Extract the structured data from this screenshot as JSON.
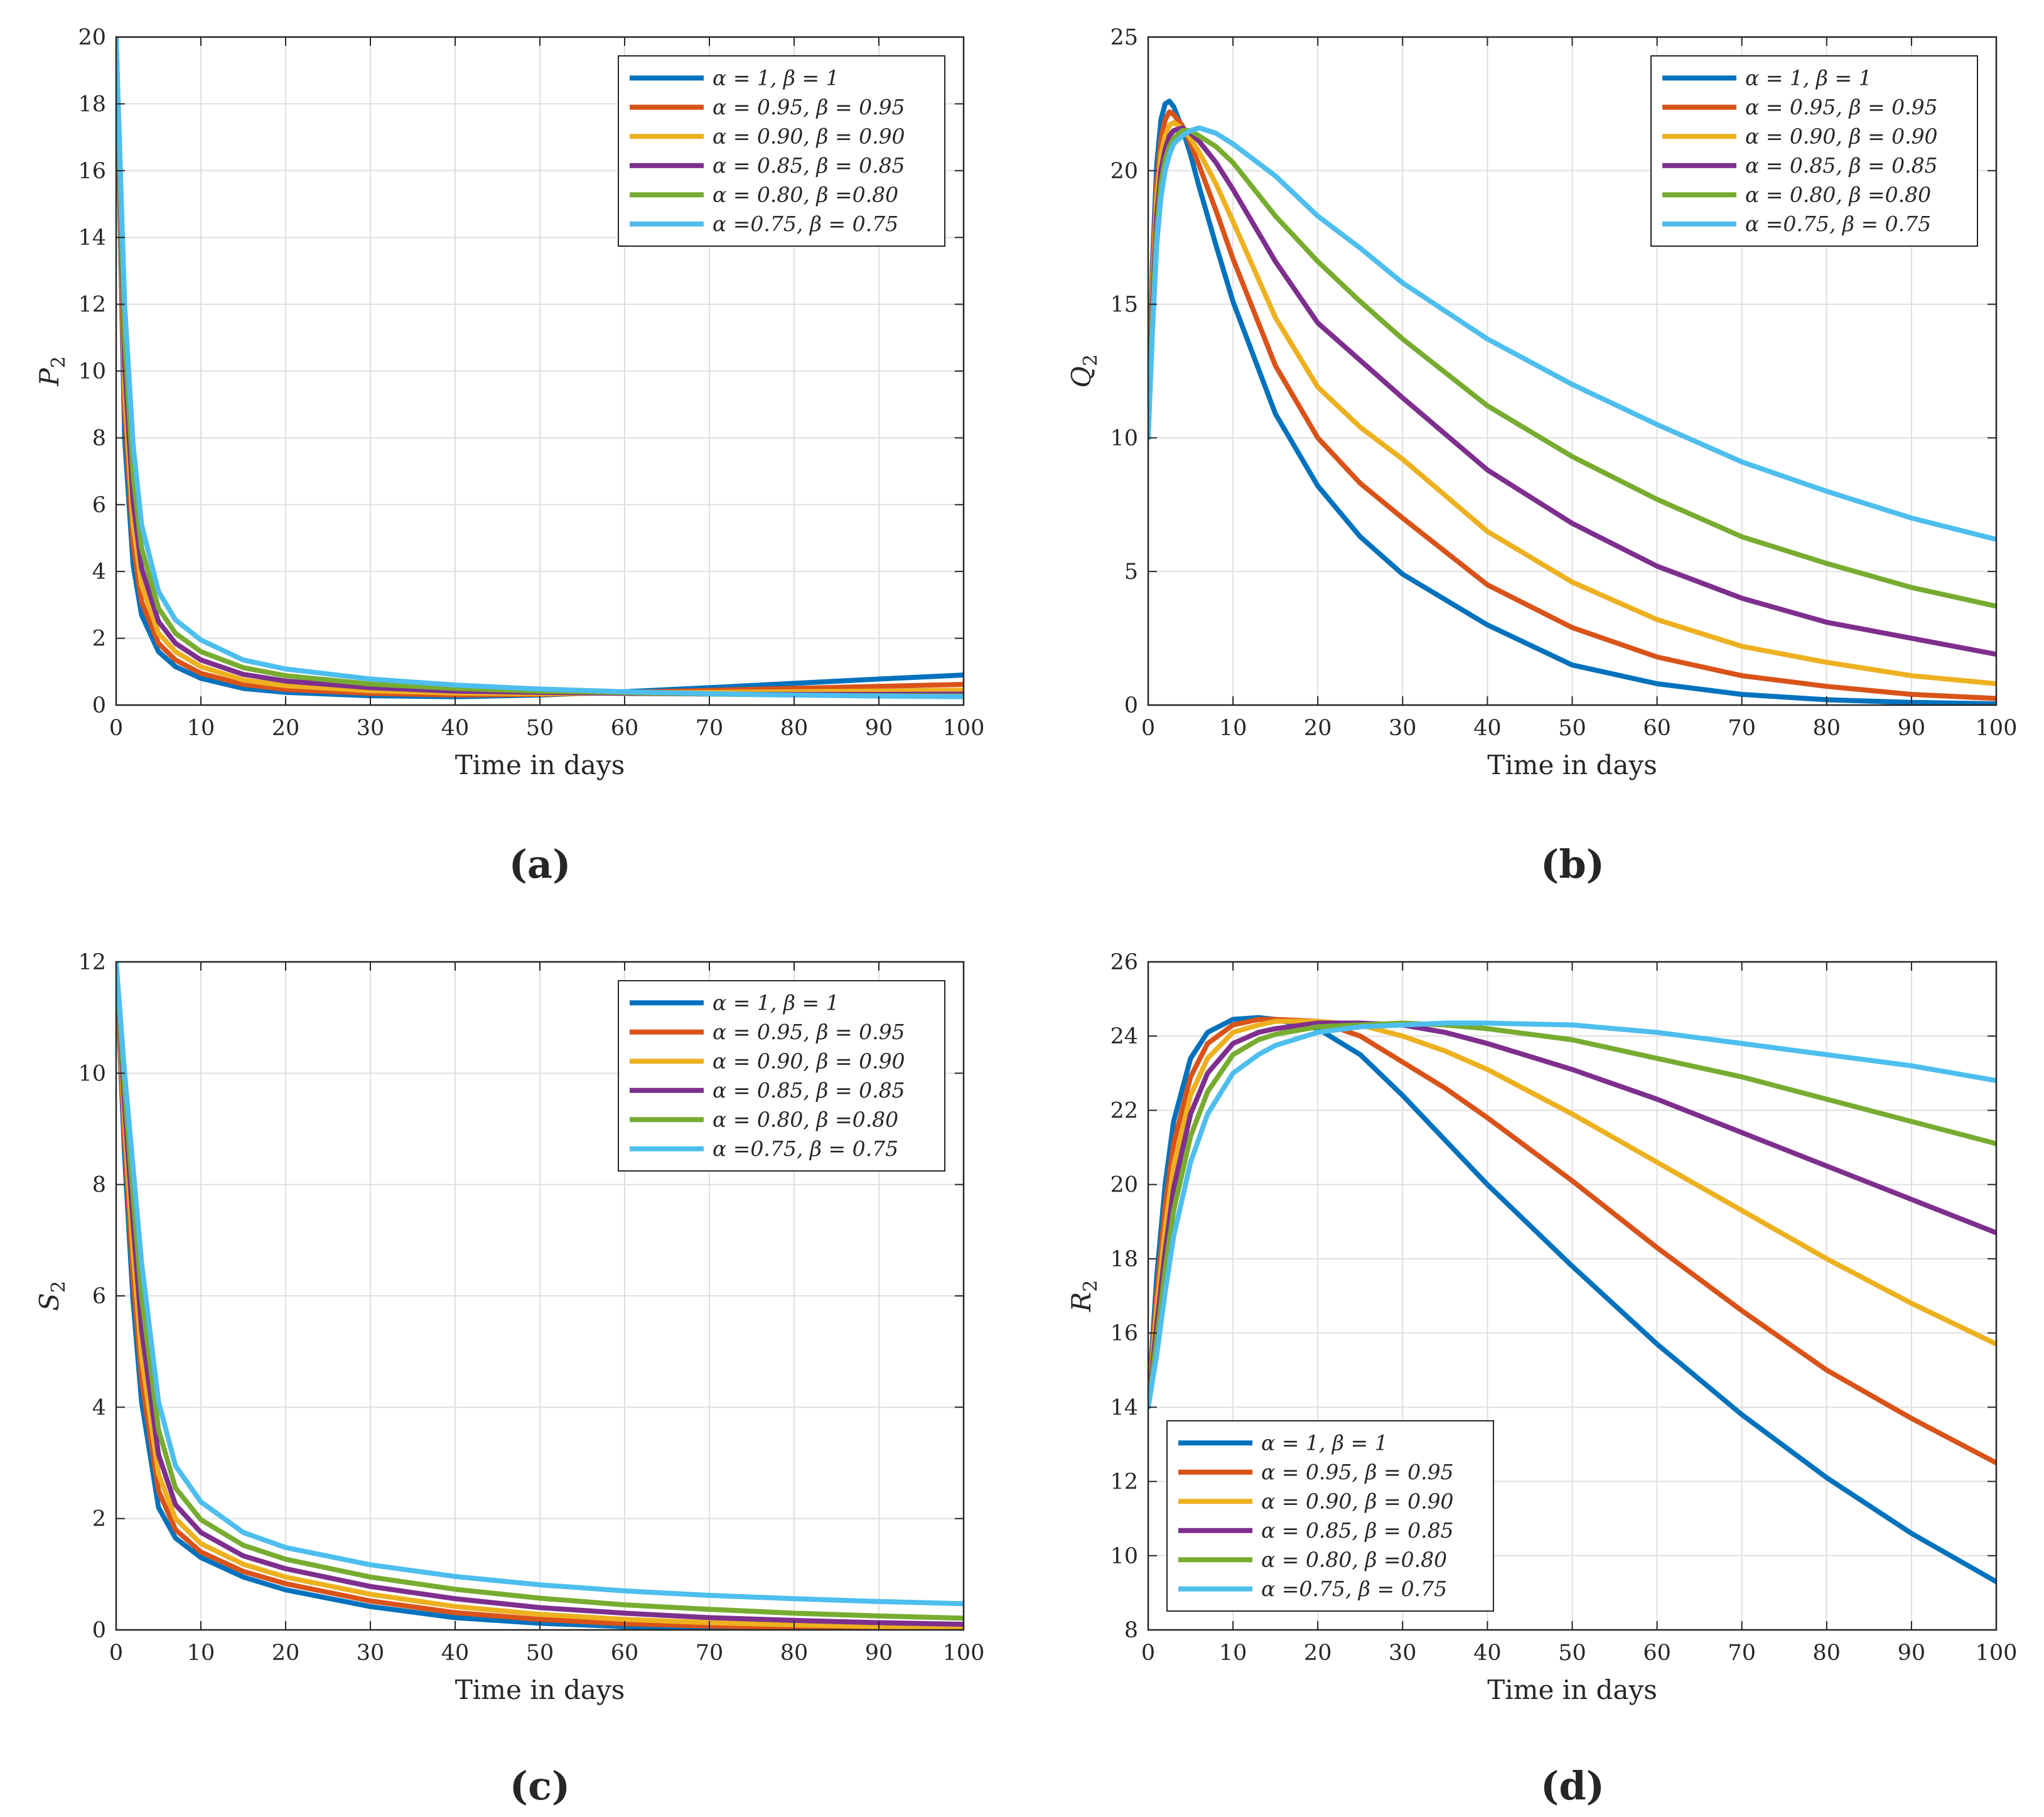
{
  "figure": {
    "legend_labels": [
      "α = 1, β = 1",
      "α = 0.95, β = 0.95",
      "α = 0.90, β = 0.90",
      "α = 0.85, β = 0.85",
      "α = 0.80, β =0.80",
      "α =0.75, β = 0.75"
    ],
    "series_colors": [
      "#0072BD",
      "#D95319",
      "#EDB120",
      "#7E2F8E",
      "#77AC30",
      "#4DBEEE"
    ]
  },
  "chart_data": [
    {
      "id": "a",
      "type": "line",
      "caption": "(a)",
      "xlabel": "Time in days",
      "ylabel_main": "P",
      "ylabel_sub": "2",
      "xlim": [
        0,
        100
      ],
      "ylim": [
        0,
        20
      ],
      "xticks": [
        0,
        10,
        20,
        30,
        40,
        50,
        60,
        70,
        80,
        90,
        100
      ],
      "yticks": [
        0,
        2,
        4,
        6,
        8,
        10,
        12,
        14,
        16,
        18,
        20
      ],
      "grid": true,
      "legend_position": "top-right",
      "x": [
        0,
        1,
        2,
        3,
        5,
        7,
        10,
        15,
        20,
        30,
        40,
        50,
        60,
        70,
        80,
        90,
        100
      ],
      "series": [
        {
          "name": "α = 1, β = 1",
          "values": [
            20,
            8.0,
            4.2,
            2.7,
            1.6,
            1.15,
            0.8,
            0.5,
            0.38,
            0.28,
            0.25,
            0.3,
            0.4,
            0.52,
            0.65,
            0.78,
            0.9
          ]
        },
        {
          "name": "α = 0.95, β = 0.95",
          "values": [
            20,
            8.8,
            4.8,
            3.1,
            1.85,
            1.35,
            0.95,
            0.62,
            0.47,
            0.35,
            0.3,
            0.32,
            0.38,
            0.44,
            0.5,
            0.56,
            0.62
          ]
        },
        {
          "name": "α = 0.90, β = 0.90",
          "values": [
            20,
            9.5,
            5.4,
            3.6,
            2.15,
            1.6,
            1.15,
            0.75,
            0.58,
            0.43,
            0.36,
            0.34,
            0.36,
            0.38,
            0.4,
            0.42,
            0.45
          ]
        },
        {
          "name": "α = 0.85, β = 0.85",
          "values": [
            20,
            10.2,
            6.1,
            4.1,
            2.5,
            1.85,
            1.35,
            0.92,
            0.72,
            0.52,
            0.42,
            0.38,
            0.35,
            0.33,
            0.32,
            0.32,
            0.33
          ]
        },
        {
          "name": "α = 0.80, β =0.80",
          "values": [
            20,
            11.0,
            6.9,
            4.7,
            2.9,
            2.15,
            1.6,
            1.12,
            0.88,
            0.63,
            0.5,
            0.42,
            0.37,
            0.33,
            0.3,
            0.28,
            0.27
          ]
        },
        {
          "name": "α =0.75, β = 0.75",
          "values": [
            20,
            12.0,
            7.8,
            5.4,
            3.4,
            2.55,
            1.95,
            1.35,
            1.08,
            0.78,
            0.6,
            0.48,
            0.4,
            0.34,
            0.3,
            0.27,
            0.25
          ]
        }
      ]
    },
    {
      "id": "b",
      "type": "line",
      "caption": "(b)",
      "xlabel": "Time in days",
      "ylabel_main": "Q",
      "ylabel_sub": "2",
      "xlim": [
        0,
        100
      ],
      "ylim": [
        0,
        25
      ],
      "xticks": [
        0,
        10,
        20,
        30,
        40,
        50,
        60,
        70,
        80,
        90,
        100
      ],
      "yticks": [
        0,
        5,
        10,
        15,
        20,
        25
      ],
      "grid": true,
      "legend_position": "top-right",
      "x": [
        0,
        0.5,
        1,
        1.5,
        2,
        2.5,
        3,
        4,
        5,
        6,
        8,
        10,
        15,
        20,
        25,
        30,
        40,
        50,
        60,
        70,
        80,
        90,
        100
      ],
      "series": [
        {
          "name": "α = 1, β = 1",
          "values": [
            10,
            16.5,
            20.2,
            21.9,
            22.5,
            22.6,
            22.4,
            21.6,
            20.6,
            19.4,
            17.2,
            15.1,
            10.9,
            8.2,
            6.3,
            4.9,
            3.0,
            1.5,
            0.8,
            0.4,
            0.2,
            0.1,
            0.05
          ]
        },
        {
          "name": "α = 0.95, β = 0.95",
          "values": [
            10,
            16.0,
            19.5,
            21.2,
            21.9,
            22.2,
            22.1,
            21.7,
            21.0,
            20.2,
            18.5,
            16.7,
            12.7,
            10.0,
            8.3,
            7.0,
            4.5,
            2.9,
            1.8,
            1.1,
            0.7,
            0.4,
            0.25
          ]
        },
        {
          "name": "α = 0.90, β = 0.90",
          "values": [
            10,
            15.5,
            18.9,
            20.6,
            21.3,
            21.7,
            21.8,
            21.6,
            21.2,
            20.7,
            19.5,
            18.1,
            14.5,
            11.9,
            10.4,
            9.2,
            6.5,
            4.6,
            3.2,
            2.2,
            1.6,
            1.1,
            0.8
          ]
        },
        {
          "name": "α = 0.85, β = 0.85",
          "values": [
            10,
            15.0,
            18.3,
            20.0,
            20.8,
            21.3,
            21.5,
            21.6,
            21.4,
            21.1,
            20.3,
            19.3,
            16.6,
            14.3,
            12.9,
            11.5,
            8.8,
            6.8,
            5.2,
            4.0,
            3.1,
            2.5,
            1.9
          ]
        },
        {
          "name": "α = 0.80, β =0.80",
          "values": [
            10,
            14.5,
            17.7,
            19.5,
            20.4,
            20.9,
            21.2,
            21.5,
            21.5,
            21.3,
            20.9,
            20.3,
            18.3,
            16.6,
            15.1,
            13.7,
            11.2,
            9.3,
            7.7,
            6.3,
            5.3,
            4.4,
            3.7
          ]
        },
        {
          "name": "α =0.75, β = 0.75",
          "values": [
            10,
            14.0,
            17.2,
            19.0,
            20.0,
            20.6,
            21.0,
            21.3,
            21.5,
            21.6,
            21.4,
            21.0,
            19.8,
            18.3,
            17.1,
            15.8,
            13.7,
            12.0,
            10.5,
            9.1,
            8.0,
            7.0,
            6.2
          ]
        }
      ]
    },
    {
      "id": "c",
      "type": "line",
      "caption": "(c)",
      "xlabel": "Time in days",
      "ylabel_main": "S",
      "ylabel_sub": "2",
      "xlim": [
        0,
        100
      ],
      "ylim": [
        0,
        12
      ],
      "xticks": [
        0,
        10,
        20,
        30,
        40,
        50,
        60,
        70,
        80,
        90,
        100
      ],
      "yticks": [
        0,
        2,
        4,
        6,
        8,
        10,
        12
      ],
      "grid": true,
      "legend_position": "top-right",
      "x": [
        0,
        1,
        2,
        3,
        5,
        7,
        10,
        15,
        20,
        30,
        40,
        50,
        60,
        70,
        80,
        90,
        100
      ],
      "series": [
        {
          "name": "α = 1, β = 1",
          "values": [
            12,
            8.5,
            5.9,
            4.1,
            2.2,
            1.65,
            1.3,
            0.95,
            0.72,
            0.42,
            0.22,
            0.12,
            0.06,
            0.03,
            0.02,
            0.01,
            0.01
          ]
        },
        {
          "name": "α = 0.95, β = 0.95",
          "values": [
            12,
            8.8,
            6.3,
            4.5,
            2.5,
            1.8,
            1.4,
            1.05,
            0.83,
            0.52,
            0.31,
            0.19,
            0.11,
            0.07,
            0.04,
            0.03,
            0.02
          ]
        },
        {
          "name": "α = 0.90, β = 0.90",
          "values": [
            12,
            9.1,
            6.8,
            4.9,
            2.8,
            2.0,
            1.55,
            1.18,
            0.95,
            0.64,
            0.42,
            0.28,
            0.19,
            0.13,
            0.09,
            0.06,
            0.05
          ]
        },
        {
          "name": "α = 0.85, β = 0.85",
          "values": [
            12,
            9.4,
            7.3,
            5.4,
            3.15,
            2.25,
            1.75,
            1.33,
            1.1,
            0.78,
            0.56,
            0.4,
            0.3,
            0.22,
            0.17,
            0.13,
            0.1
          ]
        },
        {
          "name": "α = 0.80, β =0.80",
          "values": [
            12,
            9.7,
            7.8,
            6.0,
            3.6,
            2.55,
            1.98,
            1.52,
            1.27,
            0.95,
            0.73,
            0.57,
            0.45,
            0.37,
            0.3,
            0.25,
            0.21
          ]
        },
        {
          "name": "α =0.75, β = 0.75",
          "values": [
            12,
            10.0,
            8.3,
            6.6,
            4.1,
            2.95,
            2.3,
            1.75,
            1.48,
            1.17,
            0.96,
            0.81,
            0.7,
            0.62,
            0.56,
            0.51,
            0.47
          ]
        }
      ]
    },
    {
      "id": "d",
      "type": "line",
      "caption": "(d)",
      "xlabel": "Time in days",
      "ylabel_main": "R",
      "ylabel_sub": "2",
      "xlim": [
        0,
        100
      ],
      "ylim": [
        8,
        26
      ],
      "xticks": [
        0,
        10,
        20,
        30,
        40,
        50,
        60,
        70,
        80,
        90,
        100
      ],
      "yticks": [
        8,
        10,
        12,
        14,
        16,
        18,
        20,
        22,
        24,
        26
      ],
      "grid": true,
      "legend_position": "bottom-left",
      "x": [
        0,
        1,
        2,
        3,
        5,
        7,
        10,
        13,
        15,
        20,
        25,
        30,
        35,
        40,
        50,
        60,
        70,
        80,
        90,
        100
      ],
      "series": [
        {
          "name": "α = 1, β = 1",
          "values": [
            14,
            17.5,
            20.0,
            21.7,
            23.4,
            24.1,
            24.45,
            24.5,
            24.45,
            24.2,
            23.5,
            22.4,
            21.2,
            20.0,
            17.8,
            15.7,
            13.8,
            12.1,
            10.6,
            9.3
          ]
        },
        {
          "name": "α = 0.95, β = 0.95",
          "values": [
            14,
            17.0,
            19.4,
            21.1,
            22.9,
            23.8,
            24.3,
            24.45,
            24.45,
            24.4,
            24.0,
            23.3,
            22.6,
            21.8,
            20.1,
            18.3,
            16.6,
            15.0,
            13.7,
            12.5
          ]
        },
        {
          "name": "α = 0.90, β = 0.90",
          "values": [
            14,
            16.6,
            18.8,
            20.5,
            22.4,
            23.4,
            24.1,
            24.3,
            24.4,
            24.4,
            24.3,
            24.0,
            23.6,
            23.1,
            21.9,
            20.6,
            19.3,
            18.0,
            16.8,
            15.7
          ]
        },
        {
          "name": "α = 0.85, β = 0.85",
          "values": [
            14,
            16.2,
            18.2,
            19.9,
            21.9,
            23.0,
            23.8,
            24.1,
            24.2,
            24.35,
            24.35,
            24.3,
            24.1,
            23.8,
            23.1,
            22.3,
            21.4,
            20.5,
            19.6,
            18.7
          ]
        },
        {
          "name": "α = 0.80, β =0.80",
          "values": [
            14,
            15.8,
            17.7,
            19.3,
            21.3,
            22.5,
            23.5,
            23.9,
            24.05,
            24.25,
            24.3,
            24.35,
            24.3,
            24.2,
            23.9,
            23.4,
            22.9,
            22.3,
            21.7,
            21.1
          ]
        },
        {
          "name": "α =0.75, β = 0.75",
          "values": [
            14,
            15.4,
            17.1,
            18.6,
            20.6,
            21.9,
            23.0,
            23.5,
            23.75,
            24.1,
            24.25,
            24.3,
            24.35,
            24.35,
            24.3,
            24.1,
            23.8,
            23.5,
            23.2,
            22.8
          ]
        }
      ]
    }
  ]
}
